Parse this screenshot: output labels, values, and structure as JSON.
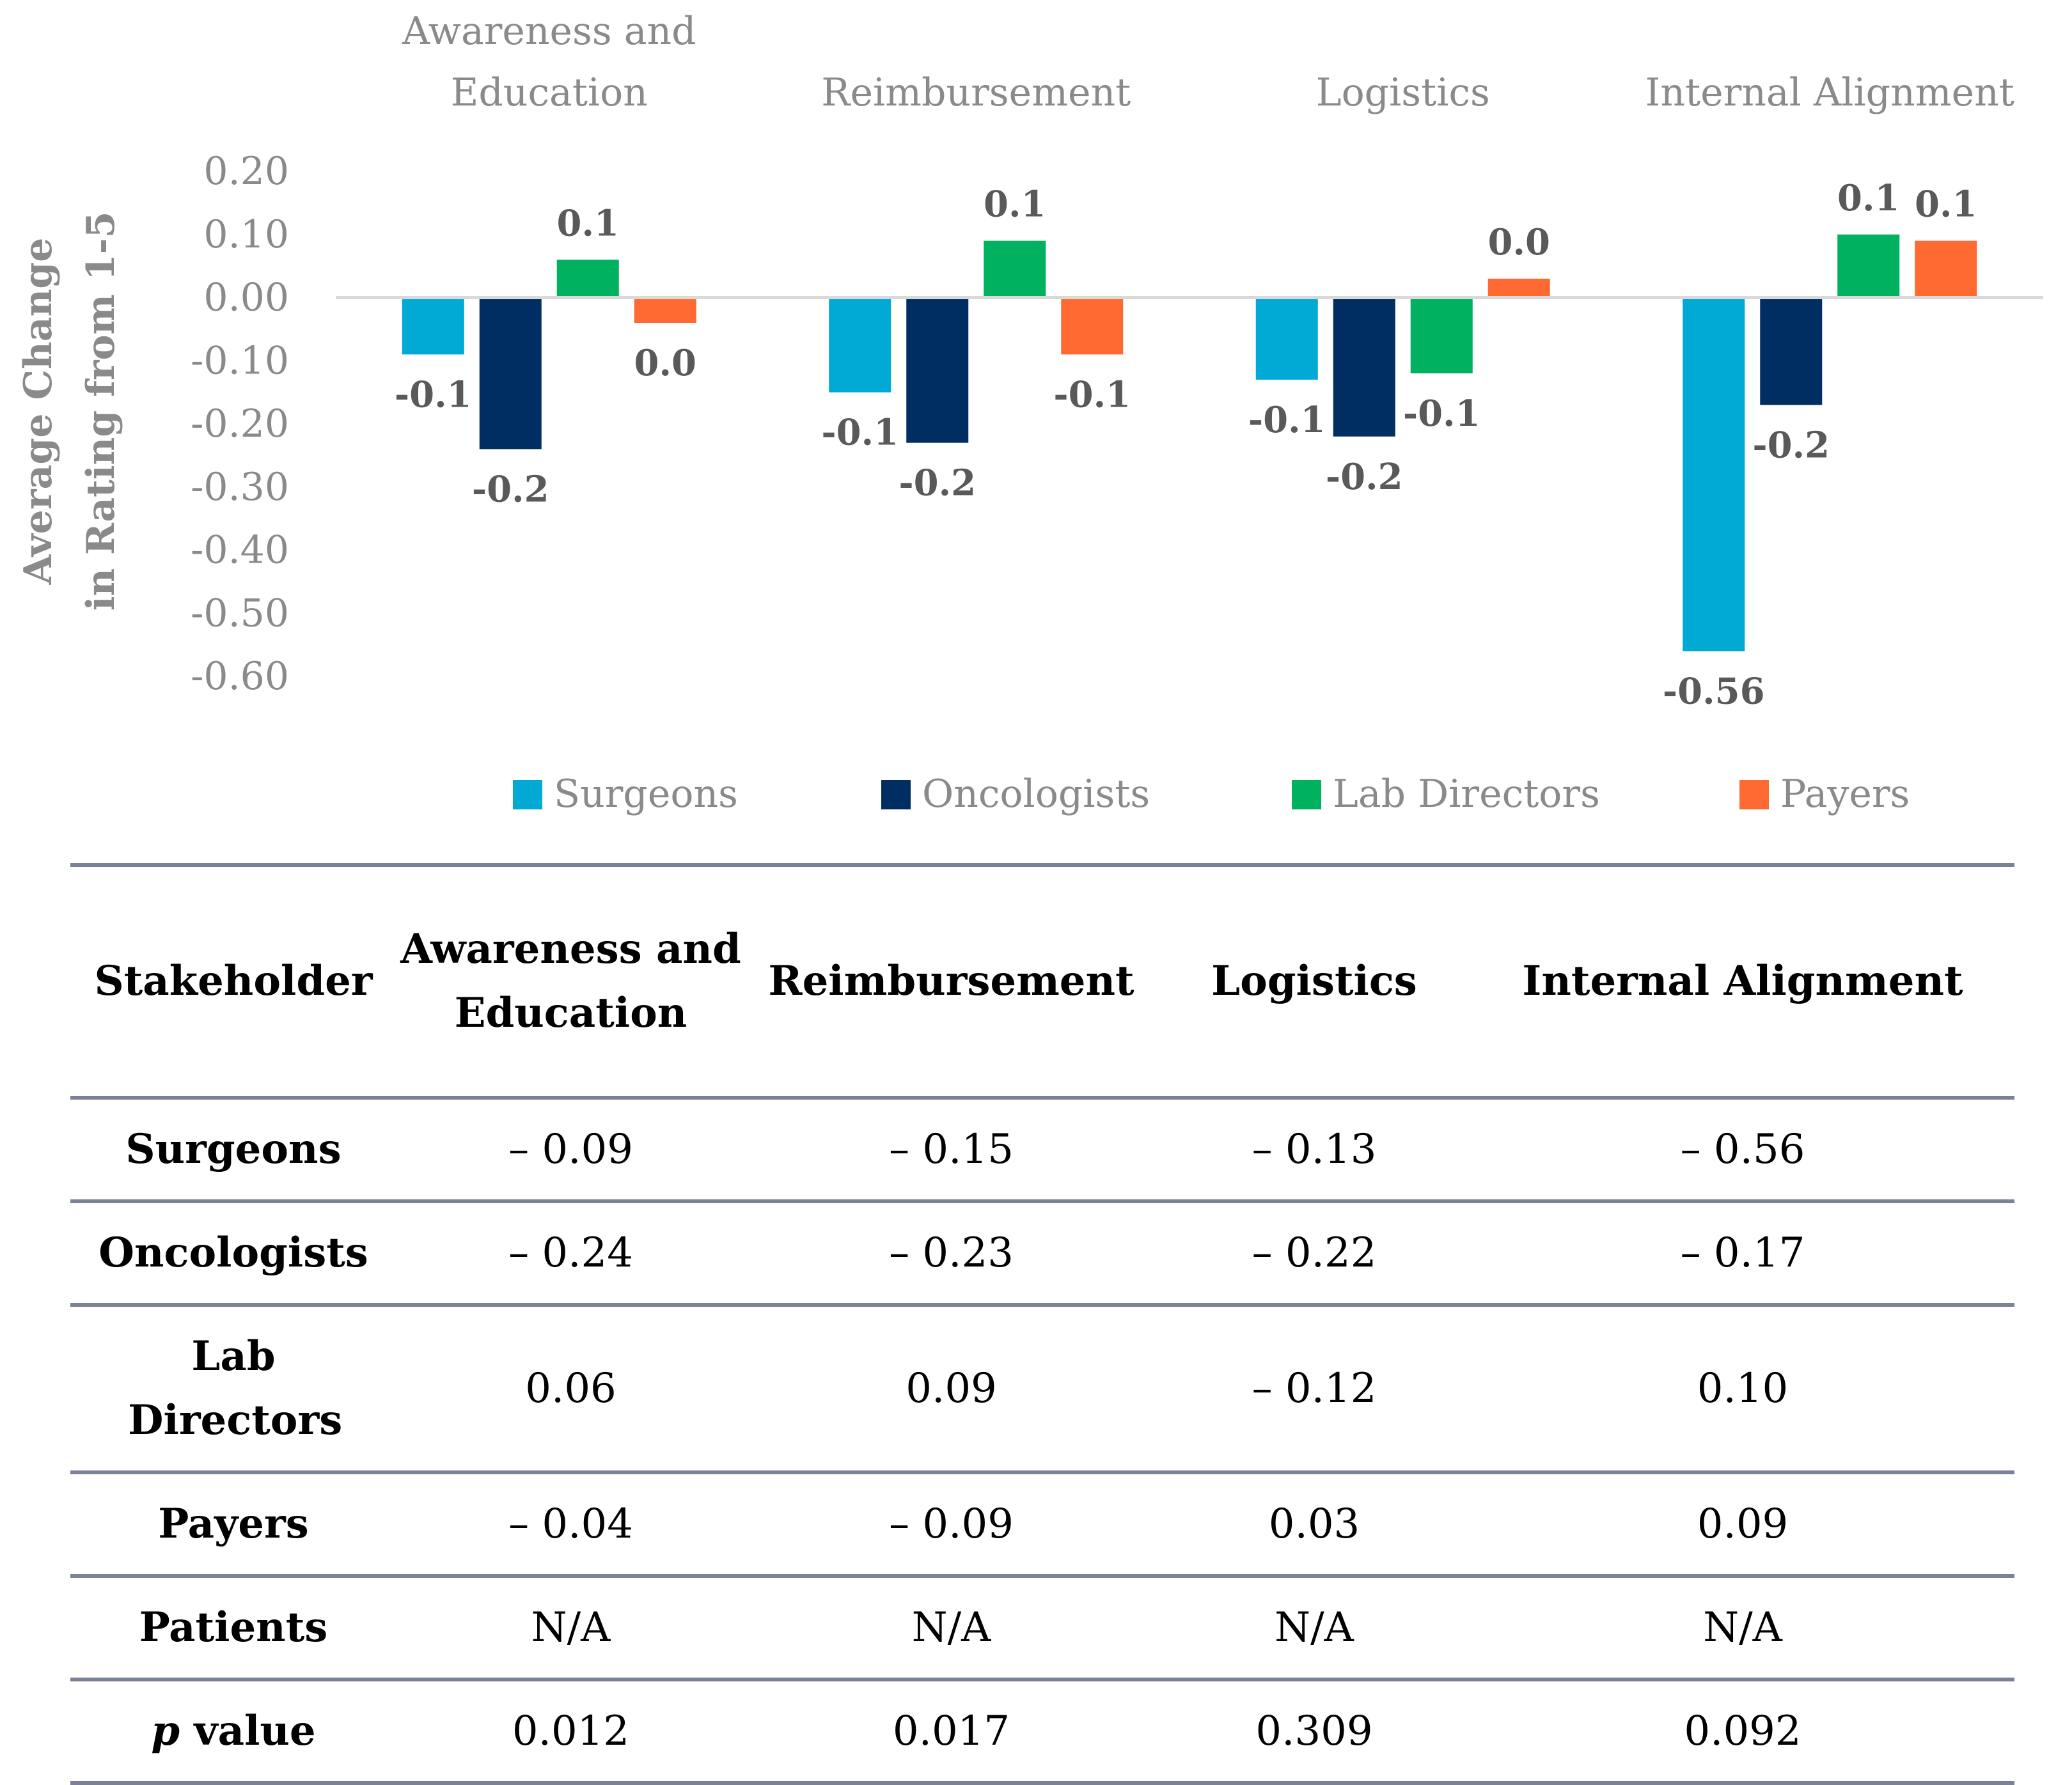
{
  "chart_data": {
    "type": "bar",
    "categories": [
      "Awareness and Education",
      "Reimbursement",
      "Logistics",
      "Internal Alignment"
    ],
    "category_lines": [
      [
        "Awareness and",
        "Education"
      ],
      [
        "Reimbursement"
      ],
      [
        "Logistics"
      ],
      [
        "Internal Alignment"
      ]
    ],
    "ylabel_lines": [
      "Average Change",
      "in Rating from 1-5"
    ],
    "ylim": [
      -0.6,
      0.2
    ],
    "yticks": [
      0.2,
      0.1,
      0.0,
      -0.1,
      -0.2,
      -0.3,
      -0.4,
      -0.5,
      -0.6
    ],
    "ytick_labels": [
      "0.20",
      "0.10",
      "0.00",
      "-0.10",
      "-0.20",
      "-0.30",
      "-0.40",
      "-0.50",
      "-0.60"
    ],
    "series": [
      {
        "name": "Surgeons",
        "color": "#00aad4",
        "values": [
          -0.09,
          -0.15,
          -0.13,
          -0.56
        ],
        "labels": [
          "-0.1",
          "-0.1",
          "-0.1",
          "-0.56"
        ]
      },
      {
        "name": "Oncologists",
        "color": "#002d62",
        "values": [
          -0.24,
          -0.23,
          -0.22,
          -0.17
        ],
        "labels": [
          "-0.2",
          "-0.2",
          "-0.2",
          "-0.2"
        ]
      },
      {
        "name": "Lab Directors",
        "color": "#00b25f",
        "values": [
          0.06,
          0.09,
          -0.12,
          0.1
        ],
        "labels": [
          "0.1",
          "0.1",
          "-0.1",
          "0.1"
        ]
      },
      {
        "name": "Payers",
        "color": "#ff6a33",
        "values": [
          -0.04,
          -0.09,
          0.03,
          0.09
        ],
        "labels": [
          "0.0",
          "-0.1",
          "0.0",
          "0.1"
        ]
      }
    ],
    "legend": "bottom",
    "grid": false
  },
  "table": {
    "headers": [
      "Stakeholder",
      "Awareness and Education",
      "Reimbursement",
      "Logistics",
      "Internal Alignment"
    ],
    "rows": [
      {
        "stakeholder": "Surgeons",
        "values": [
          "– 0.09",
          "– 0.15",
          "– 0.13",
          "– 0.56"
        ]
      },
      {
        "stakeholder": "Oncologists",
        "values": [
          "– 0.24",
          "– 0.23",
          "– 0.22",
          "– 0.17"
        ]
      },
      {
        "stakeholder": "Lab Directors",
        "values": [
          "0.06",
          "0.09",
          "– 0.12",
          "0.10"
        ]
      },
      {
        "stakeholder": "Payers",
        "values": [
          "– 0.04",
          "– 0.09",
          "0.03",
          "0.09"
        ]
      },
      {
        "stakeholder": "Patients",
        "values": [
          "N/A",
          "N/A",
          "N/A",
          "N/A"
        ]
      }
    ],
    "pvalue_row": {
      "p": "p",
      "label": " value",
      "values": [
        "0.012",
        "0.017",
        "0.309",
        "0.092"
      ]
    }
  }
}
